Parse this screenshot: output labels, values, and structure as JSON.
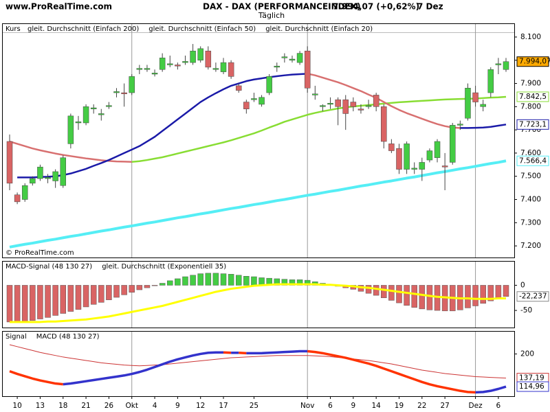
{
  "chart_data": [
    {
      "type": "candlestick",
      "title": "DAX - DAX (PERFORMANCEINDEX)",
      "last_price_text": "7.994,07 (+0,62%)",
      "date": "7 Dez",
      "subtitle": "Täglich",
      "watermark": "www.ProRealTime.com",
      "copyright": "© ProRealTime.com",
      "panel_label": "Kurs",
      "up_color": "#44cc44",
      "down_color": "#d96464",
      "close_label": "7.994,07",
      "close_box_color": "#ffaa00",
      "ylim": [
        7150,
        8156
      ],
      "yticks": [
        {
          "value": 7200,
          "label": "7.200"
        },
        {
          "value": 7300,
          "label": "7.300"
        },
        {
          "value": 7400,
          "label": "7.400"
        },
        {
          "value": 7500,
          "label": "7.500"
        },
        {
          "value": 7600,
          "label": "7.600"
        },
        {
          "value": 7700,
          "label": "7.700"
        },
        {
          "value": 7800,
          "label": "7.800"
        },
        {
          "value": 7900,
          "label": "7.900"
        },
        {
          "value": 8000,
          "label": "8.000"
        },
        {
          "value": 8100,
          "label": "8.100"
        }
      ],
      "categories": [
        null,
        "10",
        null,
        null,
        "13",
        null,
        null,
        "18",
        null,
        null,
        "21",
        null,
        null,
        "26",
        null,
        null,
        "Okt",
        null,
        null,
        "4",
        null,
        null,
        "9",
        null,
        null,
        "12",
        null,
        null,
        "17",
        null,
        null,
        null,
        "25",
        null,
        null,
        null,
        null,
        null,
        null,
        "Nov",
        null,
        null,
        "6",
        null,
        null,
        "9",
        null,
        null,
        "14",
        null,
        null,
        "19",
        null,
        null,
        "22",
        null,
        null,
        "27",
        null,
        null,
        null,
        "Dez",
        null,
        null,
        "6",
        null
      ],
      "open": [
        7650,
        7420,
        7400,
        7470,
        7490,
        7490,
        7480,
        7460,
        7640,
        7730,
        7730,
        7790,
        7765,
        7800,
        7860,
        7860,
        7860,
        7960,
        7960,
        7940,
        7960,
        7980,
        7980,
        7990,
        7990,
        8000,
        8040,
        7960,
        7950,
        7990,
        7890,
        7820,
        7830,
        7810,
        7860,
        7970,
        8010,
        8000,
        7990,
        8040,
        7850,
        7800,
        7810,
        7830,
        7830,
        7820,
        7790,
        7800,
        7850,
        7800,
        7640,
        7620,
        7530,
        7530,
        7530,
        7570,
        7580,
        7545,
        7560,
        7720,
        7750,
        7860,
        7800,
        7860,
        7980,
        7960
      ],
      "high": [
        7680,
        7430,
        7470,
        7500,
        7550,
        7510,
        7530,
        7590,
        7770,
        7760,
        7810,
        7810,
        7790,
        7820,
        7880,
        7900,
        7940,
        7980,
        7980,
        7960,
        8030,
        8020,
        7990,
        8020,
        8070,
        8060,
        8060,
        7990,
        8010,
        8000,
        7900,
        7830,
        7860,
        7850,
        7940,
        7990,
        8030,
        8020,
        8040,
        8060,
        7890,
        7810,
        7840,
        7840,
        7850,
        7840,
        7810,
        7830,
        7860,
        7810,
        7660,
        7640,
        7650,
        7560,
        7580,
        7620,
        7660,
        7600,
        7730,
        7740,
        7900,
        7890,
        7830,
        7970,
        8010,
        8010
      ],
      "low": [
        7440,
        7380,
        7390,
        7460,
        7480,
        7470,
        7450,
        7450,
        7620,
        7700,
        7720,
        7770,
        7740,
        7790,
        7840,
        7800,
        7850,
        7940,
        7950,
        7930,
        7950,
        7970,
        7960,
        7980,
        7980,
        7990,
        7960,
        7950,
        7940,
        7920,
        7860,
        7770,
        7820,
        7800,
        7850,
        7950,
        7990,
        7990,
        7980,
        7860,
        7830,
        7780,
        7790,
        7720,
        7700,
        7780,
        7770,
        7790,
        7780,
        7620,
        7600,
        7510,
        7510,
        7510,
        7480,
        7560,
        7560,
        7440,
        7550,
        7700,
        7740,
        7800,
        7780,
        7840,
        7940,
        7950
      ],
      "close": [
        7470,
        7390,
        7460,
        7490,
        7540,
        7495,
        7520,
        7580,
        7760,
        7735,
        7800,
        7795,
        7770,
        7805,
        7865,
        7855,
        7930,
        7965,
        7965,
        7945,
        8010,
        7985,
        7975,
        7995,
        8040,
        8050,
        7970,
        7965,
        7990,
        7930,
        7870,
        7790,
        7835,
        7840,
        7930,
        7975,
        8015,
        8005,
        8030,
        7880,
        7855,
        7805,
        7815,
        7800,
        7770,
        7800,
        7785,
        7805,
        7800,
        7650,
        7610,
        7530,
        7640,
        7535,
        7560,
        7610,
        7650,
        7540,
        7720,
        7725,
        7880,
        7820,
        7810,
        7960,
        7985,
        7994.07
      ],
      "series": [
        {
          "name": "gleit. Durchschnitt (Einfach 200)",
          "color": "#55eef5",
          "last_label": "7.566,4",
          "values": [
            7195,
            7201,
            7207,
            7212,
            7218,
            7224,
            7229,
            7235,
            7241,
            7246,
            7252,
            7258,
            7264,
            7269,
            7275,
            7281,
            7286,
            7292,
            7298,
            7303,
            7309,
            7315,
            7321,
            7326,
            7332,
            7338,
            7343,
            7349,
            7355,
            7361,
            7366,
            7372,
            7378,
            7383,
            7389,
            7395,
            7400,
            7406,
            7412,
            7418,
            7423,
            7429,
            7435,
            7440,
            7446,
            7452,
            7458,
            7463,
            7469,
            7475,
            7480,
            7486,
            7492,
            7497,
            7503,
            7509,
            7515,
            7520,
            7526,
            7532,
            7537,
            7543,
            7549,
            7555,
            7560,
            7566.4
          ]
        },
        {
          "name": "gleit. Durchschnitt (Einfach 50)",
          "color": "#88dd33",
          "falling_color": "#d87070",
          "last_label": "7.842,5",
          "values": [
            7650,
            7640,
            7630,
            7620,
            7612,
            7605,
            7598,
            7592,
            7587,
            7582,
            7577,
            7573,
            7569,
            7566,
            7564,
            7563,
            7562,
            7565,
            7570,
            7576,
            7582,
            7590,
            7598,
            7606,
            7614,
            7622,
            7630,
            7638,
            7646,
            7655,
            7665,
            7675,
            7685,
            7697,
            7710,
            7722,
            7735,
            7745,
            7755,
            7765,
            7773,
            7780,
            7786,
            7792,
            7797,
            7801,
            7804,
            7807,
            7810,
            7813,
            7816,
            7819,
            7821,
            7823,
            7825,
            7827,
            7829,
            7831,
            7832,
            7833,
            7834,
            7835,
            7837,
            7839,
            7840,
            7842.5
          ]
        },
        {
          "name": "gleit. Durchschnitt (Einfach 20)",
          "color": "#1a1aa8",
          "falling_color": "#d87070",
          "last_label": "7.723,1",
          "values": [
            null,
            7495,
            7495,
            7495,
            7497,
            7498,
            7500,
            7505,
            7512,
            7522,
            7532,
            7545,
            7557,
            7570,
            7585,
            7600,
            7615,
            7630,
            7650,
            7670,
            7695,
            7720,
            7745,
            7770,
            7795,
            7820,
            7840,
            7858,
            7875,
            7890,
            7900,
            7910,
            7917,
            7922,
            7927,
            7931,
            7935,
            7938,
            7940,
            7942,
            7935,
            7925,
            7915,
            7905,
            7893,
            7880,
            7867,
            7852,
            7838,
            7820,
            7802,
            7786,
            7772,
            7760,
            7748,
            7736,
            7725,
            7716,
            7710,
            7708,
            7708,
            7709,
            7710,
            7713,
            7718,
            7723.1
          ]
        }
      ]
    },
    {
      "type": "combo",
      "ylim": [
        -84,
        47
      ],
      "yticks": [
        0,
        -50
      ],
      "series": [
        {
          "name": "MACD-Signal (48 130 27)",
          "type": "bar",
          "color": "#d96464",
          "positive_color": "#44cc44",
          "last_label": "-22,237",
          "values": [
            -73,
            -73,
            -72,
            -70,
            -67,
            -64,
            -60,
            -56,
            -52,
            -48,
            -43,
            -38,
            -34,
            -29,
            -24,
            -19,
            -14,
            -9,
            -5,
            -1,
            4,
            9,
            13,
            17,
            20,
            23,
            24,
            24,
            23,
            22,
            20,
            18,
            17,
            15,
            14,
            13,
            12,
            11,
            11,
            10,
            7,
            4,
            1,
            -2,
            -5,
            -8,
            -12,
            -16,
            -20,
            -25,
            -30,
            -35,
            -40,
            -44,
            -47,
            -49,
            -50,
            -51,
            -51,
            -49,
            -45,
            -41,
            -36,
            -31,
            -27,
            -22.237
          ]
        },
        {
          "name": "gleit. Durchschnitt (Exponentiell 35)",
          "type": "line",
          "color": "#ffff00",
          "values": [
            -73,
            -73,
            -73,
            -73,
            -73,
            -72,
            -72,
            -71,
            -70,
            -69,
            -68,
            -66,
            -64,
            -62,
            -59,
            -56,
            -53,
            -50,
            -47,
            -44,
            -41,
            -37,
            -33,
            -29,
            -25,
            -21,
            -17,
            -13,
            -10,
            -7,
            -5,
            -3,
            -1,
            0,
            1,
            2,
            2,
            2,
            2,
            2,
            2,
            1,
            1,
            0,
            -1,
            -2,
            -4,
            -5,
            -7,
            -9,
            -11,
            -13,
            -15,
            -17,
            -19,
            -21,
            -23,
            -24,
            -25,
            -26,
            -26,
            -27,
            -27,
            -27,
            -26,
            -26
          ]
        }
      ]
    },
    {
      "type": "line",
      "ylim": [
        90,
        258
      ],
      "yticks": [
        200
      ],
      "series": [
        {
          "name": "Signal",
          "color": "#cc3333",
          "last_label": "137,19",
          "values": [
            224,
            219,
            214,
            209,
            204,
            200,
            196,
            192,
            189,
            186,
            183,
            180,
            177,
            175,
            173,
            171,
            170,
            169,
            170,
            171,
            172,
            174,
            176,
            178,
            180,
            182,
            184,
            186,
            188,
            190,
            191,
            192,
            193,
            194,
            195,
            196,
            196,
            196,
            196,
            196,
            195,
            194,
            193,
            191,
            189,
            187,
            185,
            183,
            180,
            177,
            174,
            170,
            166,
            162,
            158,
            155,
            152,
            149,
            147,
            145,
            143,
            141,
            140,
            139,
            138,
            137.19
          ]
        },
        {
          "name": "MACD (48 130 27)",
          "color": "#3333cc",
          "falling_color": "#ff3300",
          "last_label": "114,96",
          "values": [
            155,
            148,
            142,
            136,
            131,
            127,
            123,
            121,
            123,
            126,
            129,
            132,
            135,
            138,
            141,
            144,
            148,
            153,
            159,
            166,
            173,
            180,
            186,
            191,
            196,
            200,
            203,
            204,
            204,
            203,
            203,
            202,
            202,
            202,
            203,
            204,
            205,
            206,
            207,
            207,
            205,
            202,
            198,
            194,
            190,
            185,
            180,
            175,
            169,
            162,
            155,
            148,
            141,
            134,
            127,
            121,
            116,
            112,
            108,
            104,
            101,
            100,
            101,
            104,
            109,
            114.96
          ]
        }
      ]
    }
  ]
}
